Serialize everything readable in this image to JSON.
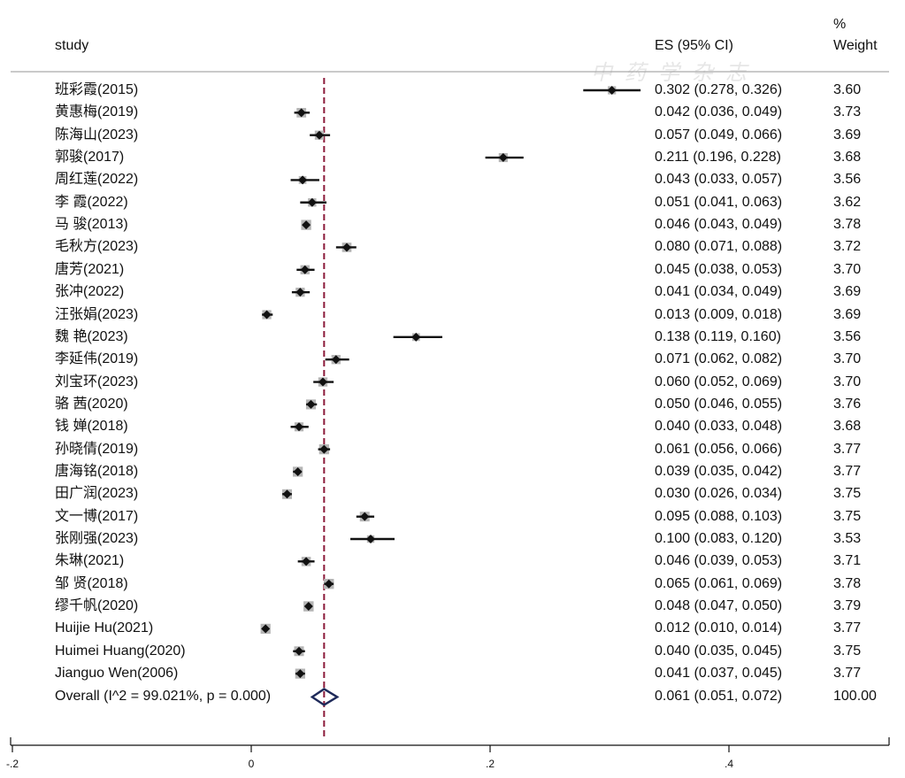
{
  "header": {
    "study": "study",
    "es": "ES (95% CI)",
    "weight_pct": "%",
    "weight_label": "Weight"
  },
  "watermark": "中药学杂志",
  "colors": {
    "marker": "#111111",
    "weight_box": "#b5b5b5",
    "overall_line": "#8b1a3a",
    "diamond": "#1f2a5a",
    "rule": "#aaaaaa"
  },
  "chart_data": {
    "type": "forest",
    "x_ticks": [
      -0.2,
      0,
      0.2,
      0.4
    ],
    "x_tick_labels": [
      "-.2",
      "0",
      ".2",
      ".4"
    ],
    "xlim": [
      -0.2,
      0.52
    ],
    "overall_line": 0.061,
    "studies": [
      {
        "label": "班彩霞(2015)",
        "es": 0.302,
        "lo": 0.278,
        "hi": 0.326,
        "es_text": "0.302 (0.278, 0.326)",
        "weight": "3.60"
      },
      {
        "label": "黄惠梅(2019)",
        "es": 0.042,
        "lo": 0.036,
        "hi": 0.049,
        "es_text": "0.042 (0.036, 0.049)",
        "weight": "3.73"
      },
      {
        "label": "陈海山(2023)",
        "es": 0.057,
        "lo": 0.049,
        "hi": 0.066,
        "es_text": "0.057 (0.049, 0.066)",
        "weight": "3.69"
      },
      {
        "label": "郭骏(2017)",
        "es": 0.211,
        "lo": 0.196,
        "hi": 0.228,
        "es_text": "0.211 (0.196, 0.228)",
        "weight": "3.68"
      },
      {
        "label": "周红莲(2022)",
        "es": 0.043,
        "lo": 0.033,
        "hi": 0.057,
        "es_text": "0.043 (0.033, 0.057)",
        "weight": "3.56"
      },
      {
        "label": "李 霞(2022)",
        "es": 0.051,
        "lo": 0.041,
        "hi": 0.063,
        "es_text": "0.051 (0.041, 0.063)",
        "weight": "3.62"
      },
      {
        "label": "马 骏(2013)",
        "es": 0.046,
        "lo": 0.043,
        "hi": 0.049,
        "es_text": "0.046 (0.043, 0.049)",
        "weight": "3.78"
      },
      {
        "label": "毛秋方(2023)",
        "es": 0.08,
        "lo": 0.071,
        "hi": 0.088,
        "es_text": "0.080 (0.071, 0.088)",
        "weight": "3.72"
      },
      {
        "label": "唐芳(2021)",
        "es": 0.045,
        "lo": 0.038,
        "hi": 0.053,
        "es_text": "0.045 (0.038, 0.053)",
        "weight": "3.70"
      },
      {
        "label": "张冲(2022)",
        "es": 0.041,
        "lo": 0.034,
        "hi": 0.049,
        "es_text": "0.041 (0.034, 0.049)",
        "weight": "3.69"
      },
      {
        "label": "汪张娟(2023)",
        "es": 0.013,
        "lo": 0.009,
        "hi": 0.018,
        "es_text": "0.013 (0.009, 0.018)",
        "weight": "3.69"
      },
      {
        "label": "魏 艳(2023)",
        "es": 0.138,
        "lo": 0.119,
        "hi": 0.16,
        "es_text": "0.138 (0.119, 0.160)",
        "weight": "3.56"
      },
      {
        "label": "李延伟(2019)",
        "es": 0.071,
        "lo": 0.062,
        "hi": 0.082,
        "es_text": "0.071 (0.062, 0.082)",
        "weight": "3.70"
      },
      {
        "label": "刘宝环(2023)",
        "es": 0.06,
        "lo": 0.052,
        "hi": 0.069,
        "es_text": "0.060 (0.052, 0.069)",
        "weight": "3.70"
      },
      {
        "label": "骆 茜(2020)",
        "es": 0.05,
        "lo": 0.046,
        "hi": 0.055,
        "es_text": "0.050 (0.046, 0.055)",
        "weight": "3.76"
      },
      {
        "label": "钱 婵(2018)",
        "es": 0.04,
        "lo": 0.033,
        "hi": 0.048,
        "es_text": "0.040 (0.033, 0.048)",
        "weight": "3.68"
      },
      {
        "label": "孙晓倩(2019)",
        "es": 0.061,
        "lo": 0.056,
        "hi": 0.066,
        "es_text": "0.061 (0.056, 0.066)",
        "weight": "3.77"
      },
      {
        "label": "唐海铭(2018)",
        "es": 0.039,
        "lo": 0.035,
        "hi": 0.042,
        "es_text": "0.039 (0.035, 0.042)",
        "weight": "3.77"
      },
      {
        "label": "田广润(2023)",
        "es": 0.03,
        "lo": 0.026,
        "hi": 0.034,
        "es_text": "0.030 (0.026, 0.034)",
        "weight": "3.75"
      },
      {
        "label": "文一博(2017)",
        "es": 0.095,
        "lo": 0.088,
        "hi": 0.103,
        "es_text": "0.095 (0.088, 0.103)",
        "weight": "3.75"
      },
      {
        "label": "张刚强(2023)",
        "es": 0.1,
        "lo": 0.083,
        "hi": 0.12,
        "es_text": "0.100 (0.083, 0.120)",
        "weight": "3.53"
      },
      {
        "label": "朱琳(2021)",
        "es": 0.046,
        "lo": 0.039,
        "hi": 0.053,
        "es_text": "0.046 (0.039, 0.053)",
        "weight": "3.71"
      },
      {
        "label": "邹 贤(2018)",
        "es": 0.065,
        "lo": 0.061,
        "hi": 0.069,
        "es_text": "0.065 (0.061, 0.069)",
        "weight": "3.78"
      },
      {
        "label": "缪千帆(2020)",
        "es": 0.048,
        "lo": 0.047,
        "hi": 0.05,
        "es_text": "0.048 (0.047, 0.050)",
        "weight": "3.79"
      },
      {
        "label": "Huijie Hu(2021)",
        "es": 0.012,
        "lo": 0.01,
        "hi": 0.014,
        "es_text": "0.012 (0.010, 0.014)",
        "weight": "3.77"
      },
      {
        "label": "Huimei Huang(2020)",
        "es": 0.04,
        "lo": 0.035,
        "hi": 0.045,
        "es_text": "0.040 (0.035, 0.045)",
        "weight": "3.75"
      },
      {
        "label": "Jianguo Wen(2006)",
        "es": 0.041,
        "lo": 0.037,
        "hi": 0.045,
        "es_text": "0.041 (0.037, 0.045)",
        "weight": "3.77"
      }
    ],
    "overall": {
      "label": "Overall  (I^2 = 99.021%, p = 0.000)",
      "es": 0.061,
      "lo": 0.051,
      "hi": 0.072,
      "es_text": "0.061 (0.051, 0.072)",
      "weight": "100.00"
    }
  }
}
